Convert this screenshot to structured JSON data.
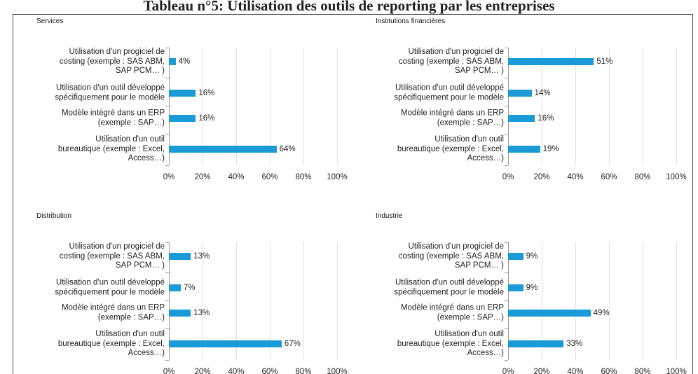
{
  "title": "Tableau n°5: Utilisation des outils de reporting par les entreprises",
  "chart_data": [
    {
      "type": "bar",
      "orientation": "horizontal",
      "title": "Services",
      "categories": [
        "Utilisation d'un progiciel de\ncosting (exemple : SAS ABM,\nSAP PCM… )",
        "Utilisation d'un outil développé\nspécifiquement pour le modèle",
        "Modèle intégré dans un ERP\n(exemple : SAP…)",
        "Utilisation d'un outil\nbureautique (exemple : Excel,\nAccess…)"
      ],
      "values": [
        4,
        16,
        16,
        64
      ],
      "value_labels": [
        "4%",
        "16%",
        "16%",
        "64%"
      ],
      "color": "#1a9ad6",
      "xlim": [
        0,
        100
      ],
      "xticks": [
        {
          "value": 0,
          "label": "0%"
        },
        {
          "value": 20,
          "label": "20%"
        },
        {
          "value": 40,
          "label": "40%"
        },
        {
          "value": 60,
          "label": "60%"
        },
        {
          "value": 80,
          "label": "80%"
        },
        {
          "value": 100,
          "label": "100%"
        }
      ],
      "grid": true
    },
    {
      "type": "bar",
      "orientation": "horizontal",
      "title": "Institutions financières",
      "categories": [
        "Utilisation d'un progiciel de\ncosting (exemple : SAS ABM,\nSAP PCM… )",
        "Utilisation d'un outil développé\nspécifiquement pour le modèle",
        "Modèle intégré dans un ERP\n(exemple : SAP…)",
        "Utilisation d'un outil\nbureautique (exemple : Excel,\nAccess…)"
      ],
      "values": [
        51,
        14,
        16,
        19
      ],
      "value_labels": [
        "51%",
        "14%",
        "16%",
        "19%"
      ],
      "color": "#1a9ad6",
      "xlim": [
        0,
        100
      ],
      "xticks": [
        {
          "value": 0,
          "label": "0%"
        },
        {
          "value": 20,
          "label": "20%"
        },
        {
          "value": 40,
          "label": "40%"
        },
        {
          "value": 60,
          "label": "60%"
        },
        {
          "value": 80,
          "label": "80%"
        },
        {
          "value": 100,
          "label": "100%"
        }
      ],
      "grid": true
    },
    {
      "type": "bar",
      "orientation": "horizontal",
      "title": "Distribution",
      "categories": [
        "Utilisation d'un progiciel de\ncosting (exemple : SAS ABM,\nSAP PCM… )",
        "Utilisation d'un outil développé\nspécifiquement pour le modèle",
        "Modèle intégré dans un ERP\n(exemple : SAP…)",
        "Utilisation d'un outil\nbureautique (exemple : Excel,\nAccess…)"
      ],
      "values": [
        13,
        7,
        13,
        67
      ],
      "value_labels": [
        "13%",
        "7%",
        "13%",
        "67%"
      ],
      "color": "#1a9ad6",
      "xlim": [
        0,
        100
      ],
      "xticks": [
        {
          "value": 0,
          "label": "0%"
        },
        {
          "value": 20,
          "label": "20%"
        },
        {
          "value": 40,
          "label": "40%"
        },
        {
          "value": 60,
          "label": "60%"
        },
        {
          "value": 80,
          "label": "80%"
        },
        {
          "value": 100,
          "label": "100%"
        }
      ],
      "grid": true
    },
    {
      "type": "bar",
      "orientation": "horizontal",
      "title": "Industrie",
      "categories": [
        "Utilisation d'un progiciel de\ncosting (exemple : SAS ABM,\nSAP PCM… )",
        "Utilisation d'un outil développé\nspécifiquement pour le modèle",
        "Modèle intégré dans un ERP\n(exemple : SAP…)",
        "Utilisation d'un outil\nbureautique (exemple : Excel,\nAccess…)"
      ],
      "values": [
        9,
        9,
        49,
        33
      ],
      "value_labels": [
        "9%",
        "9%",
        "49%",
        "33%"
      ],
      "color": "#1a9ad6",
      "xlim": [
        0,
        100
      ],
      "xticks": [
        {
          "value": 0,
          "label": "0%"
        },
        {
          "value": 20,
          "label": "20%"
        },
        {
          "value": 40,
          "label": "40%"
        },
        {
          "value": 60,
          "label": "60%"
        },
        {
          "value": 80,
          "label": "80%"
        },
        {
          "value": 100,
          "label": "100%"
        }
      ],
      "grid": true
    }
  ]
}
